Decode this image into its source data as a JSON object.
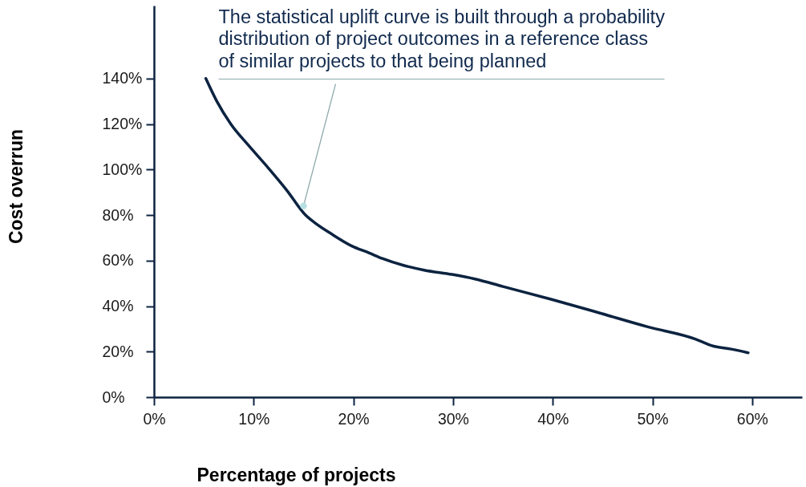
{
  "chart_data": {
    "type": "line",
    "xlabel": "Percentage of projects",
    "ylabel": "Cost overrun",
    "x": [
      5.2,
      6.3,
      7.7,
      9.5,
      11.5,
      13.3,
      15.2,
      16.1,
      17.8,
      19.8,
      21.6,
      22.9,
      25.1,
      27.1,
      29.9,
      32.2,
      35.0,
      39.9,
      44.6,
      49.6,
      54.3,
      55.0,
      55.9,
      57.9,
      59.6
    ],
    "series": [
      {
        "color": "#0c2340",
        "values": [
          140,
          130,
          120,
          110.5,
          100.5,
          91,
          80,
          76.7,
          71.7,
          66.5,
          63.3,
          60.9,
          57.8,
          55.8,
          53.9,
          51.9,
          48.6,
          42.9,
          37.1,
          30.8,
          25.5,
          24.3,
          22.7,
          21.1,
          19.5
        ]
      }
    ],
    "xlim": [
      0,
      65
    ],
    "ylim": [
      0,
      172
    ],
    "xticks": [
      {
        "value": 0,
        "label": "0%"
      },
      {
        "value": 10,
        "label": "10%"
      },
      {
        "value": 20,
        "label": "20%"
      },
      {
        "value": 30,
        "label": "30%"
      },
      {
        "value": 40,
        "label": "40%"
      },
      {
        "value": 50,
        "label": "50%"
      },
      {
        "value": 60,
        "label": "60%"
      }
    ],
    "yticks": [
      {
        "value": 0,
        "label": "0%"
      },
      {
        "value": 20,
        "label": "20%"
      },
      {
        "value": 40,
        "label": "40%"
      },
      {
        "value": 60,
        "label": "60%"
      },
      {
        "value": 80,
        "label": "80%"
      },
      {
        "value": 100,
        "label": "100%"
      },
      {
        "value": 120,
        "label": "120%"
      },
      {
        "value": 140,
        "label": "140%"
      }
    ],
    "annotations": [
      {
        "text": "The statistical uplift curve is built through a probability\ndistribution of project outcomes in a reference class\nof similar projects to that being planned",
        "x": 15,
        "y": 84
      }
    ],
    "grid": false,
    "line_style": "solid"
  }
}
